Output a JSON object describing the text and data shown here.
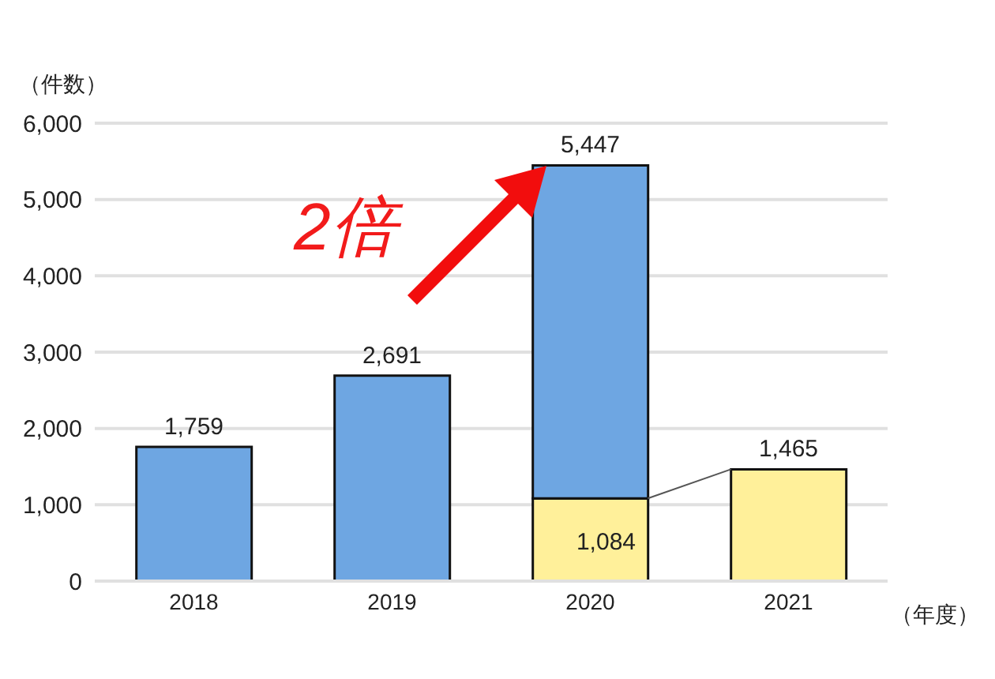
{
  "chart_data": {
    "type": "bar",
    "stacked": true,
    "categories": [
      "2018",
      "2019",
      "2020",
      "2021"
    ],
    "series": [
      {
        "color": "#fff09a",
        "values": [
          null,
          null,
          1084,
          1465
        ],
        "value_labels": [
          null,
          null,
          "1,084",
          null
        ]
      },
      {
        "color": "#6ea6e2",
        "values": [
          1759,
          2691,
          4363,
          null
        ]
      }
    ],
    "totals": [
      "1,759",
      "2,691",
      "5,447",
      "1,465"
    ],
    "ylabel": "（件数）",
    "xlabel": "（年度）",
    "annotations": [
      "2倍"
    ],
    "ylim": [
      0,
      6000
    ],
    "yticks": [
      {
        "value": 0,
        "label": "0"
      },
      {
        "value": 1000,
        "label": "1,000"
      },
      {
        "value": 2000,
        "label": "2,000"
      },
      {
        "value": 3000,
        "label": "3,000"
      },
      {
        "value": 4000,
        "label": "4,000"
      },
      {
        "value": 5000,
        "label": "5,000"
      },
      {
        "value": 6000,
        "label": "6,000"
      }
    ],
    "grid": "y",
    "legend": false
  }
}
